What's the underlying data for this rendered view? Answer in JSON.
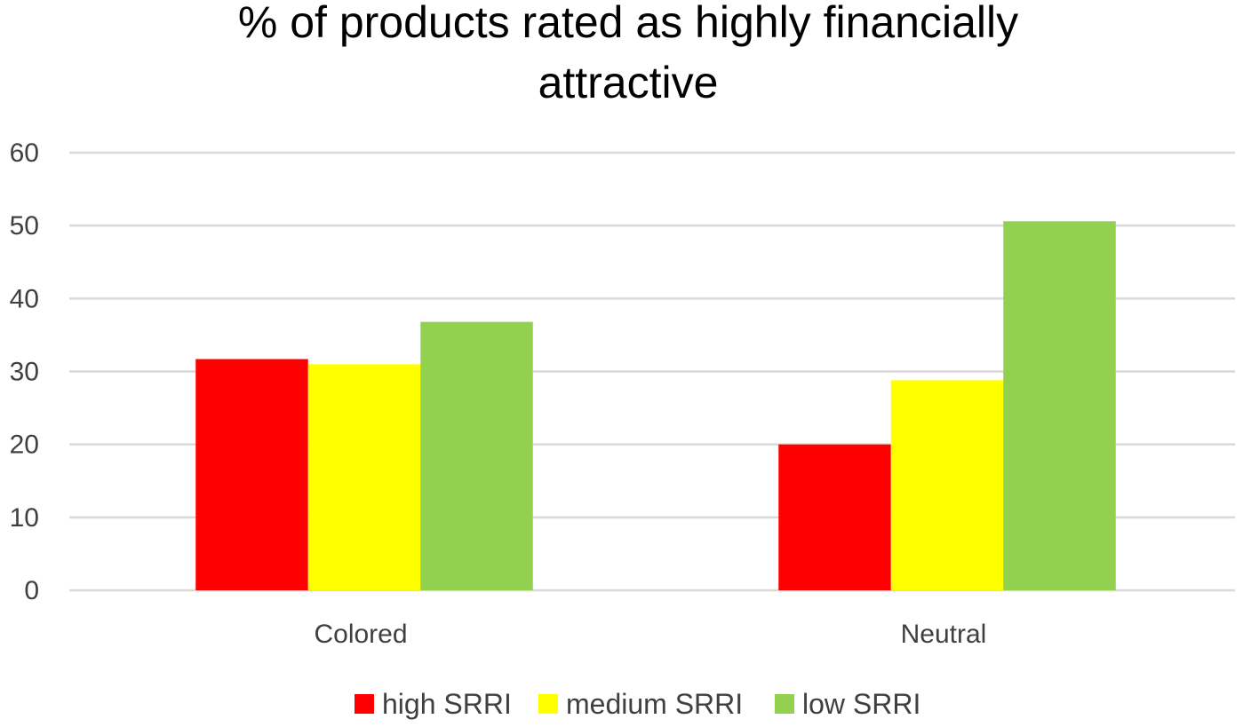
{
  "chart_data": {
    "type": "bar",
    "title_lines": [
      "% of products rated as highly financially",
      "attractive"
    ],
    "xlabel": "",
    "ylabel": "",
    "ylim": [
      0,
      60
    ],
    "yticks": [
      0,
      10,
      20,
      30,
      40,
      50,
      60
    ],
    "grid": true,
    "legend_position": "bottom",
    "categories": [
      "Colored",
      "Neutral"
    ],
    "series": [
      {
        "name": "high SRRI",
        "color": "#ff0000",
        "values": [
          31.7,
          20.0
        ]
      },
      {
        "name": "medium SRRI",
        "color": "#ffff00",
        "values": [
          31.0,
          28.8
        ]
      },
      {
        "name": "low SRRI",
        "color": "#92d050",
        "values": [
          36.8,
          50.6
        ]
      }
    ]
  }
}
